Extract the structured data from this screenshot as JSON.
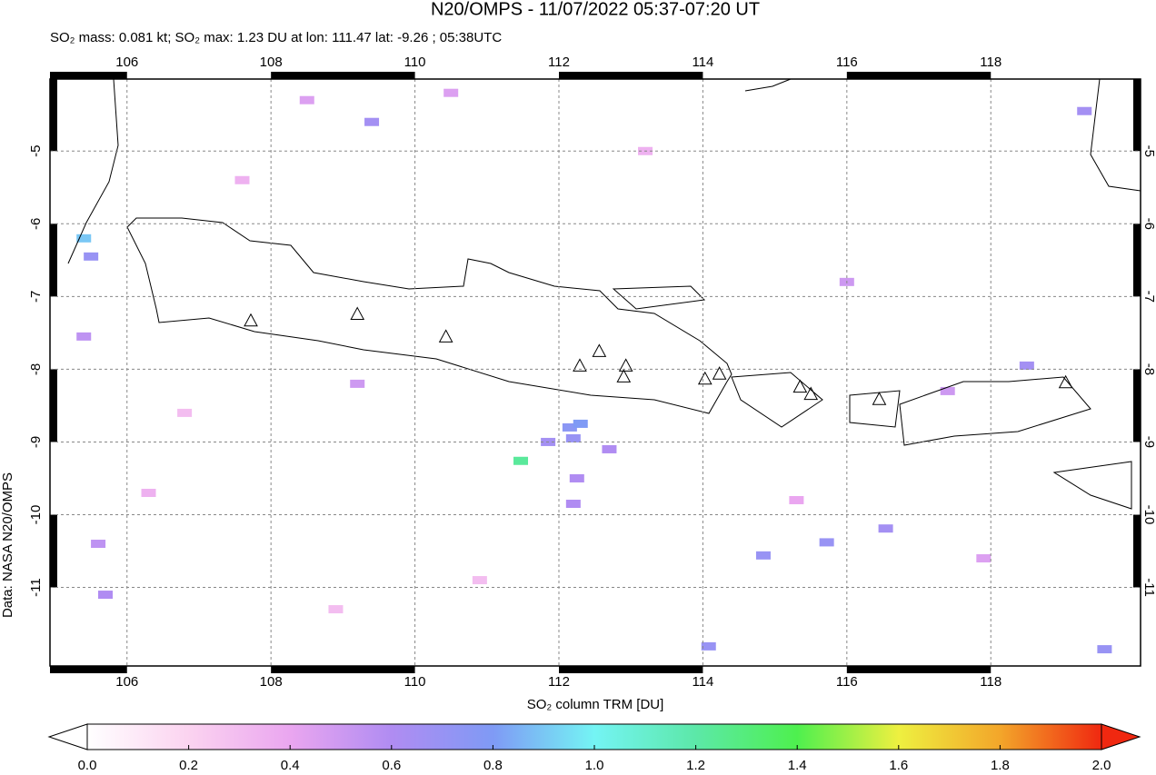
{
  "chart_data": {
    "type": "map",
    "title": "N20/OMPS - 11/07/2022 05:37-07:20 UT",
    "subtitle": "SO₂ mass: 0.081 kt; SO₂ max: 1.23 DU at lon: 111.47 lat: -9.26 ; 05:38UTC",
    "colorbar_label": "SO₂ column TRM [DU]",
    "credit": "Data: NASA N20/OMPS",
    "credit_color": "#e8301a",
    "xlim": [
      104.93,
      120.08
    ],
    "ylim": [
      -12.08,
      -4.01
    ],
    "xticks": [
      106,
      108,
      110,
      112,
      114,
      116,
      118
    ],
    "yticks": [
      -5,
      -6,
      -7,
      -8,
      -9,
      -10,
      -11
    ],
    "grid": true,
    "clim": [
      0,
      2
    ],
    "cticks": [
      {
        "value": 0,
        "label": "0.0"
      },
      {
        "value": 0.2,
        "label": "0.2"
      },
      {
        "value": 0.4,
        "label": "0.4"
      },
      {
        "value": 0.6,
        "label": "0.6"
      },
      {
        "value": 0.8,
        "label": "0.8"
      },
      {
        "value": 1,
        "label": "1.0"
      },
      {
        "value": 1.2,
        "label": "1.2"
      },
      {
        "value": 1.4,
        "label": "1.4"
      },
      {
        "value": 1.6,
        "label": "1.6"
      },
      {
        "value": 1.8,
        "label": "1.8"
      },
      {
        "value": 2,
        "label": "2.0"
      }
    ],
    "colormap": [
      {
        "value": 0,
        "color": "#ffffff"
      },
      {
        "value": 0.2,
        "color": "#fbd3f0"
      },
      {
        "value": 0.4,
        "color": "#eaa6f0"
      },
      {
        "value": 0.6,
        "color": "#b08cf2"
      },
      {
        "value": 0.8,
        "color": "#7f9af5"
      },
      {
        "value": 1,
        "color": "#74f4f4"
      },
      {
        "value": 1.2,
        "color": "#5ce8a8"
      },
      {
        "value": 1.4,
        "color": "#4ef04e"
      },
      {
        "value": 1.6,
        "color": "#eef040"
      },
      {
        "value": 1.8,
        "color": "#f3a62a"
      },
      {
        "value": 2,
        "color": "#f02810"
      }
    ],
    "pixels": {
      "lon": [
        111.47,
        112.15,
        112.3,
        112.2,
        111.85,
        112.7,
        112.25,
        112.2,
        105.4,
        105.5,
        105.4,
        105.6,
        105.7,
        109.4,
        119.3,
        118.5,
        114.08,
        114.84,
        115.72,
        116.54,
        119.58,
        109.2,
        108.5,
        116.0,
        117.4,
        106.8,
        110.5,
        113.2,
        107.6,
        115.3,
        117.9,
        110.9,
        108.9,
        106.3
      ],
      "lat": [
        -9.26,
        -8.8,
        -8.75,
        -8.95,
        -9.0,
        -9.1,
        -9.5,
        -9.85,
        -6.2,
        -6.45,
        -7.55,
        -10.4,
        -11.1,
        -4.6,
        -4.45,
        -7.95,
        -11.81,
        -10.56,
        -10.38,
        -10.19,
        -11.85,
        -8.2,
        -4.3,
        -6.8,
        -8.3,
        -8.6,
        -4.2,
        -5.0,
        -5.4,
        -9.8,
        -10.6,
        -10.9,
        -11.3,
        -9.7
      ],
      "values": [
        1.23,
        0.75,
        0.8,
        0.7,
        0.65,
        0.6,
        0.6,
        0.6,
        0.9,
        0.7,
        0.55,
        0.55,
        0.6,
        0.65,
        0.65,
        0.65,
        0.7,
        0.7,
        0.7,
        0.65,
        0.7,
        0.5,
        0.45,
        0.5,
        0.5,
        0.3,
        0.45,
        0.35,
        0.35,
        0.4,
        0.45,
        0.3,
        0.3,
        0.35
      ]
    },
    "volcanoes": {
      "lon": [
        107.72,
        109.2,
        110.43,
        112.29,
        112.56,
        112.93,
        112.9,
        114.03,
        114.23,
        115.35,
        115.5,
        116.45,
        119.04
      ],
      "lat": [
        -7.33,
        -7.24,
        -7.55,
        -7.95,
        -7.75,
        -7.95,
        -8.1,
        -8.13,
        -8.06,
        -8.24,
        -8.34,
        -8.41,
        -8.18
      ]
    }
  }
}
